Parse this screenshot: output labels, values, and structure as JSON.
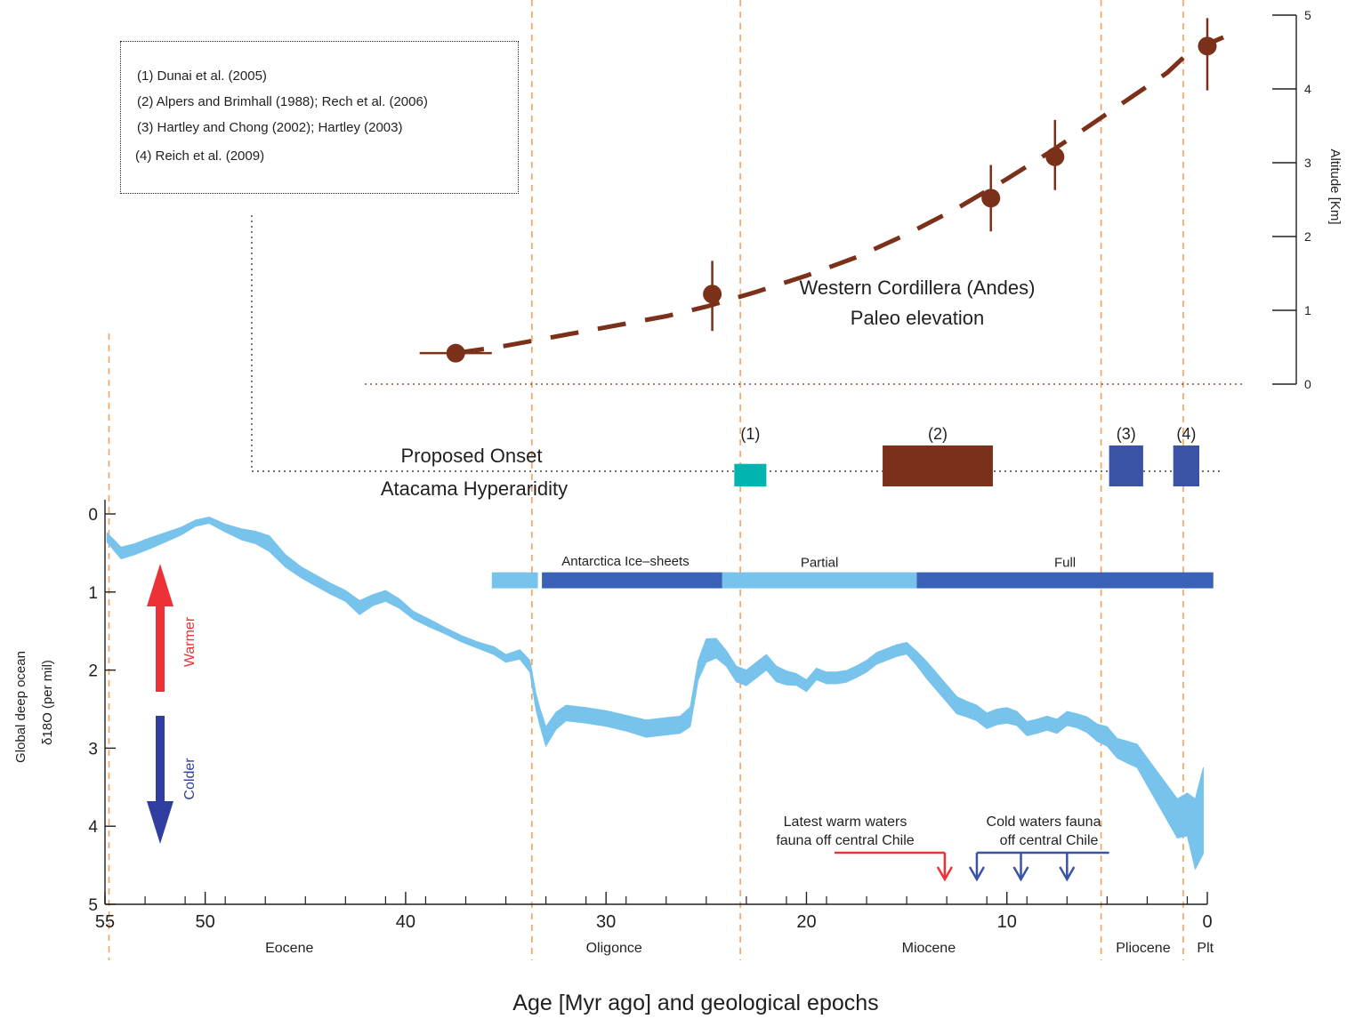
{
  "references": [
    "(1) Dunai et al. (2005)",
    "(2) Alpers and Brimhall (1988); Rech et al. (2006)",
    "(3) Hartley and Chong (2002); Hartley (2003)",
    "(4) Reich et al. (2009)"
  ],
  "chart_data": [
    {
      "type": "line",
      "name": "elevation",
      "title": "Western Cordillera (Andes)",
      "subtitle": "Paleo elevation",
      "ylabel": "Altitude [Km]",
      "ylim": [
        0,
        5
      ],
      "yticks": [
        0,
        1,
        2,
        3,
        4,
        5
      ],
      "color": "#7b3019",
      "dashed_curve": {
        "x": [
          37.5,
          35,
          31,
          27,
          25,
          22.5,
          20,
          17.5,
          15,
          12.5,
          10,
          8,
          6,
          4,
          2,
          0.9,
          -0.8
        ],
        "y": [
          0.42,
          0.52,
          0.72,
          0.92,
          1.05,
          1.25,
          1.47,
          1.72,
          2.03,
          2.38,
          2.78,
          3.12,
          3.48,
          3.85,
          4.22,
          4.5,
          4.7
        ]
      },
      "points": [
        {
          "x": 37.5,
          "y": 0.42,
          "xerr": 1.8,
          "yerr_low": 0,
          "yerr_high": 0
        },
        {
          "x": 24.7,
          "y": 1.22,
          "xerr": 0,
          "yerr_low": 0.5,
          "yerr_high": 0.45
        },
        {
          "x": 10.8,
          "y": 2.52,
          "xerr": 0,
          "yerr_low": 0.45,
          "yerr_high": 0.45
        },
        {
          "x": 7.6,
          "y": 3.08,
          "xerr": 0,
          "yerr_low": 0.45,
          "yerr_high": 0.5
        },
        {
          "x": 0,
          "y": 4.58,
          "xerr": 0,
          "yerr_low": 0.6,
          "yerr_high": 0.38
        }
      ]
    },
    {
      "type": "bar",
      "name": "hyperaridity-onset",
      "label_line1": "Proposed Onset",
      "label_line2": "Atacama Hyperaridity",
      "bars": [
        {
          "label": "(1)",
          "x0": 23.6,
          "x1": 22.0,
          "height": 0.55,
          "color": "#00b5b0"
        },
        {
          "label": "(2)",
          "x0": 16.2,
          "x1": 10.7,
          "height": 1.0,
          "color": "#7b3019"
        },
        {
          "label": "(3)",
          "x0": 4.9,
          "x1": 3.2,
          "height": 1.0,
          "color": "#3a53a4"
        },
        {
          "label": "(4)",
          "x0": 1.7,
          "x1": 0.4,
          "height": 1.0,
          "color": "#3a53a4"
        }
      ]
    },
    {
      "type": "area",
      "name": "delta18O",
      "ylabel_line1": "Global deep ocean",
      "ylabel_line2": "δ18O (per mil)",
      "xlabel": "Age [Myr ago] and geological epochs",
      "xlim": [
        55,
        0
      ],
      "ylim": [
        0,
        5
      ],
      "xticks": [
        55,
        50,
        40,
        30,
        20,
        10,
        0
      ],
      "yticks": [
        0,
        1,
        2,
        3,
        4,
        5
      ],
      "inverted_y": true,
      "color": "#77c3ec",
      "x": [
        54.9,
        54.2,
        53.5,
        52.8,
        52,
        51.2,
        50.5,
        49.8,
        49,
        48.2,
        47.5,
        46.8,
        46,
        45.2,
        44.5,
        43.8,
        43,
        42.3,
        41.6,
        41,
        40.3,
        39.6,
        38.8,
        38,
        37.2,
        36.4,
        35.6,
        35,
        34.3,
        33.8,
        33.5,
        33.3,
        33,
        32.5,
        32,
        31,
        30,
        29,
        28,
        27,
        26.3,
        25.8,
        25.4,
        25,
        24.5,
        24,
        23.5,
        23,
        22.5,
        22,
        21.5,
        21,
        20.5,
        20,
        19.5,
        19,
        18.5,
        18,
        17.5,
        17,
        16.5,
        16,
        15.5,
        15,
        14.5,
        14,
        13.5,
        13,
        12.5,
        12,
        11.5,
        11,
        10.5,
        10,
        9.5,
        9,
        8.5,
        8,
        7.5,
        7,
        6.5,
        6,
        5.5,
        5,
        4.5,
        4,
        3.5,
        3,
        2.5,
        2,
        1.5,
        1,
        0.6,
        0.2
      ],
      "y": [
        0.3,
        0.5,
        0.45,
        0.38,
        0.3,
        0.22,
        0.12,
        0.08,
        0.18,
        0.26,
        0.3,
        0.38,
        0.6,
        0.75,
        0.85,
        0.95,
        1.05,
        1.2,
        1.1,
        1.05,
        1.15,
        1.3,
        1.4,
        1.5,
        1.6,
        1.68,
        1.75,
        1.85,
        1.8,
        1.95,
        2.4,
        2.6,
        2.85,
        2.65,
        2.55,
        2.58,
        2.62,
        2.68,
        2.75,
        2.72,
        2.7,
        2.6,
        2.0,
        1.75,
        1.72,
        1.85,
        2.05,
        2.1,
        2.0,
        1.9,
        2.05,
        2.1,
        2.12,
        2.2,
        2.05,
        2.1,
        2.1,
        2.08,
        2.02,
        1.95,
        1.85,
        1.8,
        1.75,
        1.72,
        1.85,
        2.0,
        2.15,
        2.3,
        2.45,
        2.5,
        2.55,
        2.65,
        2.6,
        2.58,
        2.62,
        2.75,
        2.72,
        2.68,
        2.72,
        2.62,
        2.65,
        2.7,
        2.8,
        2.85,
        3.0,
        3.05,
        3.1,
        3.3,
        3.5,
        3.7,
        3.9,
        3.85,
        4.1,
        3.8
      ],
      "band_width": [
        0.12,
        0.15,
        0.14,
        0.14,
        0.12,
        0.1,
        0.08,
        0.08,
        0.1,
        0.14,
        0.16,
        0.2,
        0.16,
        0.14,
        0.14,
        0.14,
        0.14,
        0.18,
        0.14,
        0.14,
        0.12,
        0.1,
        0.1,
        0.08,
        0.08,
        0.08,
        0.1,
        0.1,
        0.12,
        0.15,
        0.2,
        0.22,
        0.25,
        0.22,
        0.2,
        0.2,
        0.2,
        0.2,
        0.22,
        0.22,
        0.22,
        0.25,
        0.25,
        0.3,
        0.25,
        0.2,
        0.2,
        0.2,
        0.2,
        0.2,
        0.2,
        0.18,
        0.15,
        0.15,
        0.15,
        0.15,
        0.15,
        0.15,
        0.15,
        0.15,
        0.15,
        0.15,
        0.15,
        0.15,
        0.18,
        0.22,
        0.22,
        0.22,
        0.22,
        0.2,
        0.2,
        0.2,
        0.2,
        0.2,
        0.18,
        0.18,
        0.18,
        0.18,
        0.18,
        0.18,
        0.18,
        0.2,
        0.22,
        0.25,
        0.25,
        0.28,
        0.3,
        0.35,
        0.4,
        0.45,
        0.5,
        0.55,
        0.9,
        1.1
      ],
      "ice_sheets": {
        "title": "Antarctica Ice–sheets",
        "segments": [
          {
            "label": "",
            "x0": 35.7,
            "x1": 33.4,
            "color": "#77c3ec"
          },
          {
            "label": "",
            "x0": 33.2,
            "x1": 24.2,
            "color": "#3a63b8"
          },
          {
            "label": "Partial",
            "x0": 24.2,
            "x1": 14.5,
            "color": "#77c3ec"
          },
          {
            "label": "Full",
            "x0": 14.5,
            "x1": -0.3,
            "color": "#3a63b8"
          }
        ],
        "y": 0.85
      },
      "indicators": {
        "warmer": "Warmer",
        "colder": "Colder",
        "warm_color": "#ed3237",
        "cold_color": "#303f9f"
      },
      "fauna": [
        {
          "line1": "Latest warm waters",
          "line2": "fauna off central Chile",
          "color": "#ed3237",
          "x_from": 18.6,
          "x_to": 13.1,
          "arrows": [
            13.1
          ]
        },
        {
          "line1": "Cold waters fauna",
          "line2": "off central Chile",
          "color": "#3a53a4",
          "x_from": 11.5,
          "x_to": 4.9,
          "arrows": [
            11.5,
            9.3,
            7.0
          ]
        }
      ],
      "epochs": [
        {
          "label": "Eocene",
          "x": 45.8
        },
        {
          "label": "Oligonce",
          "x": 29.6
        },
        {
          "label": "Miocene",
          "x": 13.9
        },
        {
          "label": "Pliocene",
          "x": 3.2
        },
        {
          "label": "Plt",
          "x": 0.1
        }
      ],
      "epoch_boundaries": [
        54.8,
        33.7,
        23.3,
        5.3,
        1.2
      ]
    }
  ]
}
